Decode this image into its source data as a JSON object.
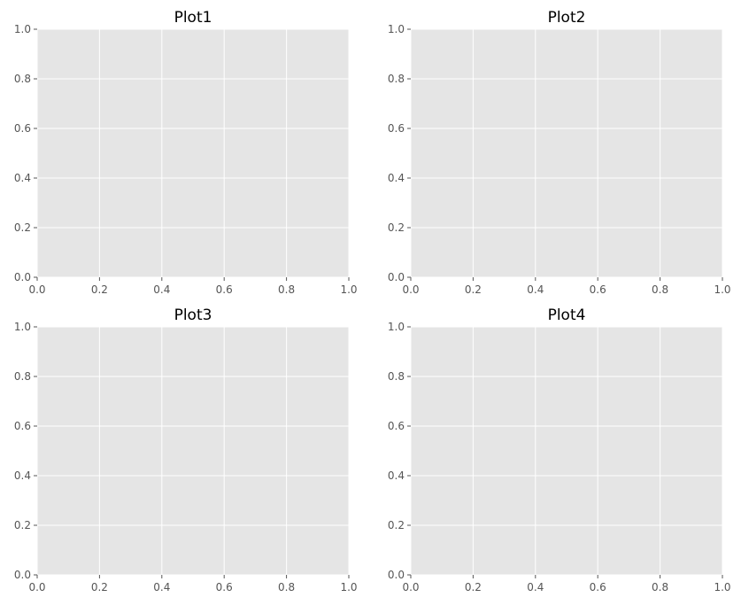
{
  "chart_data": [
    {
      "type": "line",
      "title": "Plot1",
      "xlim": [
        0,
        1
      ],
      "ylim": [
        0,
        1
      ],
      "xticks": [
        0,
        0.2,
        0.4,
        0.6,
        0.8,
        1
      ],
      "xtick_labels": [
        "0.0",
        "0.2",
        "0.4",
        "0.6",
        "0.8",
        "1.0"
      ],
      "yticks": [
        0,
        0.2,
        0.4,
        0.6,
        0.8,
        1
      ],
      "ytick_labels": [
        "0.0",
        "0.2",
        "0.4",
        "0.6",
        "0.8",
        "1.0"
      ],
      "grid": true,
      "series": []
    },
    {
      "type": "line",
      "title": "Plot2",
      "xlim": [
        0,
        1
      ],
      "ylim": [
        0,
        1
      ],
      "xticks": [
        0,
        0.2,
        0.4,
        0.6,
        0.8,
        1
      ],
      "xtick_labels": [
        "0.0",
        "0.2",
        "0.4",
        "0.6",
        "0.8",
        "1.0"
      ],
      "yticks": [
        0,
        0.2,
        0.4,
        0.6,
        0.8,
        1
      ],
      "ytick_labels": [
        "0.0",
        "0.2",
        "0.4",
        "0.6",
        "0.8",
        "1.0"
      ],
      "grid": true,
      "series": []
    },
    {
      "type": "line",
      "title": "Plot3",
      "xlim": [
        0,
        1
      ],
      "ylim": [
        0,
        1
      ],
      "xticks": [
        0,
        0.2,
        0.4,
        0.6,
        0.8,
        1
      ],
      "xtick_labels": [
        "0.0",
        "0.2",
        "0.4",
        "0.6",
        "0.8",
        "1.0"
      ],
      "yticks": [
        0,
        0.2,
        0.4,
        0.6,
        0.8,
        1
      ],
      "ytick_labels": [
        "0.0",
        "0.2",
        "0.4",
        "0.6",
        "0.8",
        "1.0"
      ],
      "grid": true,
      "series": []
    },
    {
      "type": "line",
      "title": "Plot4",
      "xlim": [
        0,
        1
      ],
      "ylim": [
        0,
        1
      ],
      "xticks": [
        0,
        0.2,
        0.4,
        0.6,
        0.8,
        1
      ],
      "xtick_labels": [
        "0.0",
        "0.2",
        "0.4",
        "0.6",
        "0.8",
        "1.0"
      ],
      "yticks": [
        0,
        0.2,
        0.4,
        0.6,
        0.8,
        1
      ],
      "ytick_labels": [
        "0.0",
        "0.2",
        "0.4",
        "0.6",
        "0.8",
        "1.0"
      ],
      "grid": true,
      "series": []
    }
  ],
  "colors": {
    "plot_background": "#e5e5e5",
    "grid": "#ffffff",
    "tick_label": "#555555",
    "title": "#000000"
  }
}
